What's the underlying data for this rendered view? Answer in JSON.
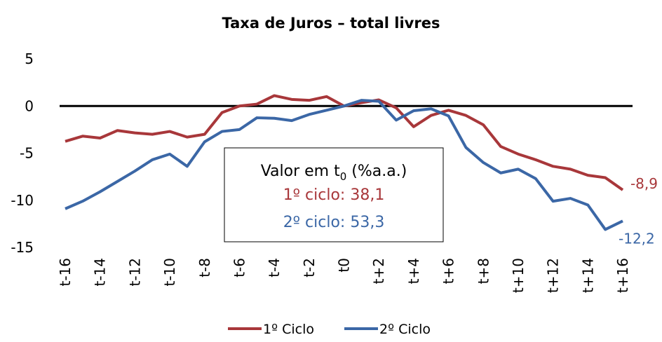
{
  "chart_data": {
    "type": "line",
    "title": "Taxa de Juros – total livres",
    "categories": [
      "t-16",
      null,
      "t-14",
      null,
      "t-12",
      null,
      "t-10",
      null,
      "t-8",
      null,
      "t-6",
      null,
      "t-4",
      null,
      "t-2",
      null,
      "t0",
      null,
      "t+2",
      null,
      "t+4",
      null,
      "t+6",
      null,
      "t+8",
      null,
      "t+10",
      null,
      "t+12",
      null,
      "t+14",
      null,
      "t+16"
    ],
    "series": [
      {
        "name": "1º Ciclo",
        "color": "#a8373a",
        "values": [
          -3.75,
          -3.2,
          -3.4,
          -2.6,
          -2.85,
          -3.0,
          -2.7,
          -3.3,
          -3.0,
          -0.7,
          0,
          0.2,
          1.1,
          0.7,
          0.6,
          1.0,
          0,
          0.35,
          0.65,
          -0.2,
          -2.2,
          -1.0,
          -0.45,
          -1.0,
          -2.0,
          -4.3,
          -5.1,
          -5.7,
          -6.4,
          -6.7,
          -7.35,
          -7.6,
          -8.9
        ],
        "value_labels": [
          null,
          null,
          null,
          null,
          null,
          null,
          null,
          null,
          null,
          null,
          null,
          null,
          null,
          null,
          null,
          null,
          null,
          null,
          null,
          null,
          null,
          null,
          null,
          null,
          null,
          null,
          null,
          null,
          null,
          null,
          null,
          null,
          "-8,9"
        ]
      },
      {
        "name": "2º Ciclo",
        "color": "#3b67a6",
        "values": [
          -10.9,
          -10.1,
          -9.1,
          -8.0,
          -6.9,
          -5.7,
          -5.1,
          -6.4,
          -3.8,
          -2.7,
          -2.5,
          -1.25,
          -1.3,
          -1.55,
          -0.9,
          -0.45,
          0,
          0.6,
          0.5,
          -1.5,
          -0.5,
          -0.3,
          -1.05,
          -4.4,
          -6.0,
          -7.1,
          -6.7,
          -7.7,
          -10.1,
          -9.8,
          -10.5,
          -13.1,
          -12.2
        ],
        "value_labels": [
          null,
          null,
          null,
          null,
          null,
          null,
          null,
          null,
          null,
          null,
          null,
          null,
          null,
          null,
          null,
          null,
          null,
          null,
          null,
          null,
          null,
          null,
          null,
          null,
          null,
          null,
          null,
          null,
          null,
          null,
          null,
          null,
          "-12,2"
        ]
      }
    ],
    "ylim": [
      -15,
      5
    ],
    "yticks": [
      -15,
      -10,
      -5,
      0,
      5
    ],
    "annotation": {
      "title": [
        "Valor em t",
        "0",
        " (%a.a.)"
      ],
      "lines": [
        "1º ciclo: 38,1",
        "2º ciclo: 53,3"
      ]
    }
  }
}
